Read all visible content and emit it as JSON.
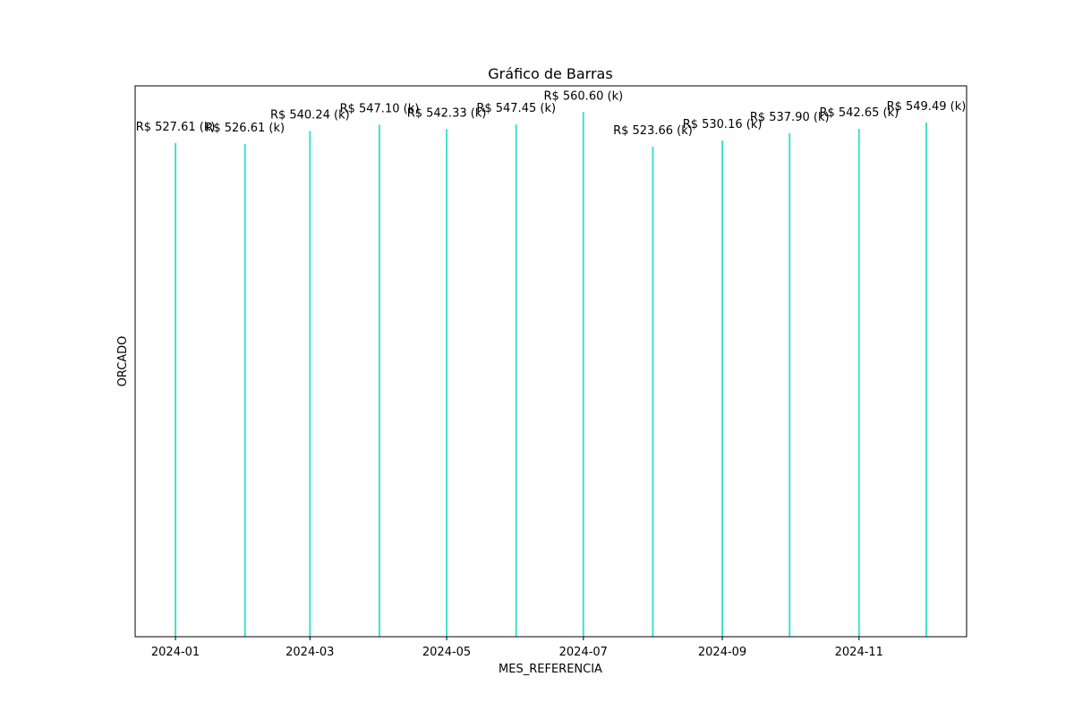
{
  "chart_data": {
    "type": "bar",
    "title": "Gráfico de Barras",
    "xlabel": "MES_REFERENCIA",
    "ylabel": "ORCADO",
    "bar_color": "#40E0D0",
    "x_dates": [
      "2024-01-01",
      "2024-02-01",
      "2024-03-01",
      "2024-04-01",
      "2024-05-01",
      "2024-06-01",
      "2024-07-01",
      "2024-08-01",
      "2024-09-01",
      "2024-10-01",
      "2024-11-01",
      "2024-12-01"
    ],
    "values": [
      527.61,
      526.61,
      540.24,
      547.1,
      542.33,
      547.45,
      560.6,
      523.66,
      530.16,
      537.9,
      542.65,
      549.49
    ],
    "value_unit": "k",
    "value_labels": [
      "R$ 527.61 (k)",
      "R$ 526.61 (k)",
      "R$ 540.24 (k)",
      "R$ 547.10 (k)",
      "R$ 542.33 (k)",
      "R$ 547.45 (k)",
      "R$ 560.60 (k)",
      "R$ 523.66 (k)",
      "R$ 530.16 (k)",
      "R$ 537.90 (k)",
      "R$ 542.65 (k)",
      "R$ 549.49 (k)"
    ],
    "x_tick_dates": [
      "2024-01-01",
      "2024-03-01",
      "2024-05-01",
      "2024-07-01",
      "2024-09-01",
      "2024-11-01"
    ],
    "x_tick_labels": [
      "2024-01",
      "2024-03",
      "2024-05",
      "2024-07",
      "2024-09",
      "2024-11"
    ],
    "xlim": [
      "2023-12-14",
      "2024-12-19"
    ],
    "ylim": [
      0,
      588.6
    ],
    "y_ticks_visible": false,
    "grid": false,
    "legend": false
  }
}
